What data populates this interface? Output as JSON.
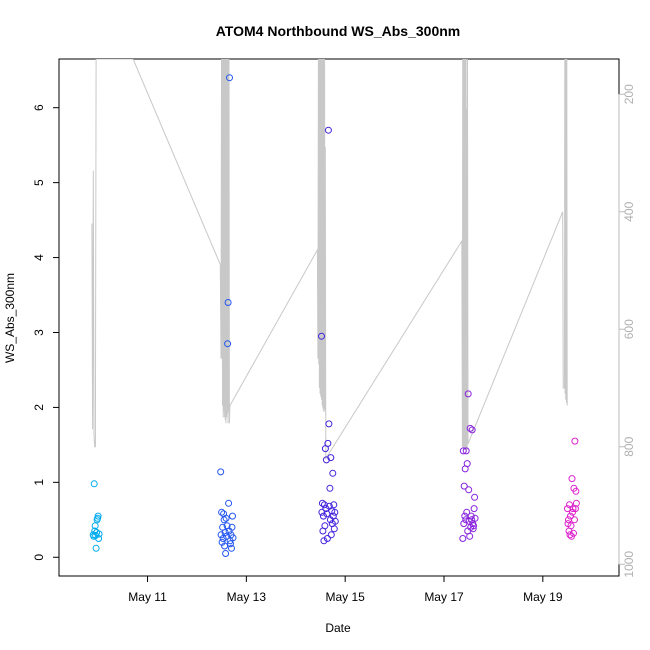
{
  "chart_data": {
    "type": "scatter",
    "title": "ATOM4 Northbound WS_Abs_300nm",
    "xlabel": "Date",
    "ylabel": "WS_Abs_300nm",
    "xlim": [
      "2016-05-09 05:00",
      "2016-05-20 13:00"
    ],
    "ylim": [
      -0.25,
      6.65
    ],
    "x_ticks": [
      "2016-05-11",
      "2016-05-13",
      "2016-05-15",
      "2016-05-17",
      "2016-05-19"
    ],
    "x_tick_labels": [
      "May 11",
      "May 13",
      "May 15",
      "May 17",
      "May 19"
    ],
    "y_ticks": [
      0,
      1,
      2,
      3,
      4,
      5,
      6
    ],
    "y2_inverted": true,
    "y2lim": [
      1020,
      140
    ],
    "y2_ticks": [
      200,
      400,
      600,
      800,
      1000
    ],
    "y2_color": "#bbbbbb",
    "grid": false,
    "legend": "none",
    "series": [
      {
        "type": "scatter",
        "color": "#00AAEE",
        "points": [
          [
            "2016-05-09 21:36",
            0.3
          ],
          [
            "2016-05-09 21:50",
            0.28
          ],
          [
            "2016-05-09 22:05",
            0.98
          ],
          [
            "2016-05-09 22:19",
            0.35
          ],
          [
            "2016-05-09 22:34",
            0.42
          ],
          [
            "2016-05-09 22:48",
            0.29
          ],
          [
            "2016-05-09 23:02",
            0.12
          ],
          [
            "2016-05-09 23:17",
            0.33
          ],
          [
            "2016-05-09 23:31",
            0.5
          ],
          [
            "2016-05-09 23:46",
            0.52
          ],
          [
            "2016-05-10 00:00",
            0.55
          ],
          [
            "2016-05-10 00:14",
            0.25
          ],
          [
            "2016-05-10 00:29",
            0.31
          ]
        ]
      },
      {
        "type": "scatter",
        "color": "#2255EE",
        "points": [
          [
            "2016-05-12 11:31",
            1.14
          ],
          [
            "2016-05-12 11:45",
            0.3
          ],
          [
            "2016-05-12 12:00",
            0.6
          ],
          [
            "2016-05-12 12:14",
            0.2
          ],
          [
            "2016-05-12 12:29",
            0.4
          ],
          [
            "2016-05-12 12:43",
            0.25
          ],
          [
            "2016-05-12 12:57",
            0.58
          ],
          [
            "2016-05-12 13:12",
            0.5
          ],
          [
            "2016-05-12 13:26",
            0.15
          ],
          [
            "2016-05-12 13:41",
            0.33
          ],
          [
            "2016-05-12 13:55",
            0.05
          ],
          [
            "2016-05-12 14:10",
            0.52
          ],
          [
            "2016-05-12 14:24",
            0.28
          ],
          [
            "2016-05-12 14:38",
            0.42
          ],
          [
            "2016-05-12 14:53",
            2.85
          ],
          [
            "2016-05-12 15:07",
            3.4
          ],
          [
            "2016-05-12 15:22",
            0.72
          ],
          [
            "2016-05-12 15:36",
            0.35
          ],
          [
            "2016-05-12 15:50",
            6.4
          ],
          [
            "2016-05-12 16:05",
            0.22
          ],
          [
            "2016-05-12 16:19",
            0.18
          ],
          [
            "2016-05-12 16:34",
            0.3
          ],
          [
            "2016-05-12 16:48",
            0.12
          ],
          [
            "2016-05-12 17:02",
            0.4
          ],
          [
            "2016-05-12 17:17",
            0.55
          ],
          [
            "2016-05-12 17:31",
            0.26
          ]
        ]
      },
      {
        "type": "scatter",
        "color": "#4422DD",
        "points": [
          [
            "2016-05-14 12:29",
            2.95
          ],
          [
            "2016-05-14 12:43",
            0.6
          ],
          [
            "2016-05-14 12:57",
            0.72
          ],
          [
            "2016-05-14 13:12",
            0.35
          ],
          [
            "2016-05-14 13:26",
            0.55
          ],
          [
            "2016-05-14 13:41",
            0.22
          ],
          [
            "2016-05-14 13:55",
            0.7
          ],
          [
            "2016-05-14 14:10",
            0.42
          ],
          [
            "2016-05-14 14:24",
            1.45
          ],
          [
            "2016-05-14 14:38",
            0.65
          ],
          [
            "2016-05-14 14:53",
            1.3
          ],
          [
            "2016-05-14 15:07",
            0.58
          ],
          [
            "2016-05-14 15:22",
            0.25
          ],
          [
            "2016-05-14 15:36",
            1.52
          ],
          [
            "2016-05-14 15:50",
            5.7
          ],
          [
            "2016-05-14 16:05",
            1.78
          ],
          [
            "2016-05-14 16:19",
            0.68
          ],
          [
            "2016-05-14 16:34",
            0.92
          ],
          [
            "2016-05-14 16:48",
            0.5
          ],
          [
            "2016-05-14 17:02",
            1.33
          ],
          [
            "2016-05-14 17:17",
            0.3
          ],
          [
            "2016-05-14 17:31",
            0.62
          ],
          [
            "2016-05-14 17:46",
            0.45
          ],
          [
            "2016-05-14 18:00",
            1.12
          ],
          [
            "2016-05-14 18:14",
            0.55
          ],
          [
            "2016-05-14 18:29",
            0.7
          ],
          [
            "2016-05-14 18:43",
            0.38
          ],
          [
            "2016-05-14 18:58",
            0.6
          ],
          [
            "2016-05-14 19:12",
            0.48
          ]
        ]
      },
      {
        "type": "scatter",
        "color": "#8822DD",
        "points": [
          [
            "2016-05-17 09:07",
            0.25
          ],
          [
            "2016-05-17 09:22",
            1.42
          ],
          [
            "2016-05-17 09:36",
            0.45
          ],
          [
            "2016-05-17 09:50",
            0.95
          ],
          [
            "2016-05-17 10:05",
            0.55
          ],
          [
            "2016-05-17 10:19",
            1.18
          ],
          [
            "2016-05-17 10:34",
            0.5
          ],
          [
            "2016-05-17 10:48",
            1.42
          ],
          [
            "2016-05-17 11:02",
            0.6
          ],
          [
            "2016-05-17 11:17",
            1.25
          ],
          [
            "2016-05-17 11:31",
            0.35
          ],
          [
            "2016-05-17 11:46",
            2.18
          ],
          [
            "2016-05-17 12:00",
            0.9
          ],
          [
            "2016-05-17 12:14",
            0.48
          ],
          [
            "2016-05-17 12:29",
            0.28
          ],
          [
            "2016-05-17 12:43",
            1.72
          ],
          [
            "2016-05-17 12:58",
            0.4
          ],
          [
            "2016-05-17 13:12",
            0.55
          ],
          [
            "2016-05-17 13:26",
            0.5
          ],
          [
            "2016-05-17 13:41",
            1.7
          ],
          [
            "2016-05-17 13:55",
            0.45
          ],
          [
            "2016-05-17 14:10",
            0.38
          ],
          [
            "2016-05-17 14:24",
            0.42
          ],
          [
            "2016-05-17 14:38",
            0.65
          ],
          [
            "2016-05-17 14:53",
            0.8
          ],
          [
            "2016-05-17 15:07",
            0.52
          ]
        ]
      },
      {
        "type": "scatter",
        "color": "#DD22CC",
        "points": [
          [
            "2016-05-19 12:00",
            0.65
          ],
          [
            "2016-05-19 12:14",
            0.45
          ],
          [
            "2016-05-19 12:29",
            0.5
          ],
          [
            "2016-05-19 12:43",
            0.35
          ],
          [
            "2016-05-19 12:57",
            0.7
          ],
          [
            "2016-05-19 13:12",
            0.3
          ],
          [
            "2016-05-19 13:26",
            0.55
          ],
          [
            "2016-05-19 13:41",
            0.42
          ],
          [
            "2016-05-19 13:55",
            0.28
          ],
          [
            "2016-05-19 14:10",
            1.05
          ],
          [
            "2016-05-19 14:24",
            0.6
          ],
          [
            "2016-05-19 14:38",
            0.65
          ],
          [
            "2016-05-19 14:53",
            0.32
          ],
          [
            "2016-05-19 15:07",
            0.92
          ],
          [
            "2016-05-19 15:22",
            0.5
          ],
          [
            "2016-05-19 15:36",
            1.55
          ],
          [
            "2016-05-19 15:50",
            0.65
          ],
          [
            "2016-05-19 16:05",
            0.88
          ],
          [
            "2016-05-19 16:19",
            0.72
          ]
        ]
      },
      {
        "type": "line",
        "axis": "right",
        "color": "#c8c8c8",
        "points": [
          [
            "2016-05-09 21:00",
            420
          ],
          [
            "2016-05-09 21:20",
            770
          ],
          [
            "2016-05-09 21:40",
            330
          ],
          [
            "2016-05-09 22:00",
            780
          ],
          [
            "2016-05-09 22:20",
            800
          ],
          [
            "2016-05-09 22:40",
            800
          ],
          [
            "2016-05-09 23:00",
            140
          ],
          [
            "2016-05-09 23:20",
            140
          ],
          [
            "2016-05-10 17:00",
            140
          ],
          [
            "2016-05-12 11:20",
            490
          ],
          [
            "2016-05-12 11:40",
            650
          ],
          [
            "2016-05-12 11:55",
            140
          ],
          [
            "2016-05-12 12:05",
            650
          ],
          [
            "2016-05-12 12:15",
            140
          ],
          [
            "2016-05-12 12:25",
            730
          ],
          [
            "2016-05-12 12:35",
            140
          ],
          [
            "2016-05-12 12:45",
            750
          ],
          [
            "2016-05-12 12:55",
            140
          ],
          [
            "2016-05-12 13:05",
            740
          ],
          [
            "2016-05-12 13:15",
            140
          ],
          [
            "2016-05-12 13:25",
            750
          ],
          [
            "2016-05-12 13:35",
            140
          ],
          [
            "2016-05-12 13:45",
            755
          ],
          [
            "2016-05-12 13:55",
            140
          ],
          [
            "2016-05-12 14:05",
            760
          ],
          [
            "2016-05-12 14:15",
            140
          ],
          [
            "2016-05-12 14:25",
            750
          ],
          [
            "2016-05-12 14:35",
            140
          ],
          [
            "2016-05-12 14:45",
            745
          ],
          [
            "2016-05-12 14:55",
            140
          ],
          [
            "2016-05-12 15:05",
            760
          ],
          [
            "2016-05-12 15:15",
            140
          ],
          [
            "2016-05-12 15:25",
            740
          ],
          [
            "2016-05-12 15:35",
            140
          ],
          [
            "2016-05-12 15:45",
            760
          ],
          [
            "2016-05-12 16:00",
            730
          ],
          [
            "2016-05-14 10:30",
            465
          ],
          [
            "2016-05-14 10:45",
            650
          ],
          [
            "2016-05-14 11:00",
            140
          ],
          [
            "2016-05-14 11:10",
            660
          ],
          [
            "2016-05-14 11:20",
            140
          ],
          [
            "2016-05-14 11:30",
            700
          ],
          [
            "2016-05-14 11:40",
            140
          ],
          [
            "2016-05-14 11:50",
            710
          ],
          [
            "2016-05-14 12:00",
            140
          ],
          [
            "2016-05-14 12:10",
            715
          ],
          [
            "2016-05-14 12:20",
            140
          ],
          [
            "2016-05-14 12:30",
            720
          ],
          [
            "2016-05-14 12:40",
            140
          ],
          [
            "2016-05-14 12:50",
            730
          ],
          [
            "2016-05-14 13:00",
            140
          ],
          [
            "2016-05-14 13:10",
            735
          ],
          [
            "2016-05-14 13:20",
            140
          ],
          [
            "2016-05-14 13:30",
            740
          ],
          [
            "2016-05-14 13:40",
            140
          ],
          [
            "2016-05-14 13:50",
            735
          ],
          [
            "2016-05-14 14:00",
            140
          ],
          [
            "2016-05-14 14:10",
            740
          ],
          [
            "2016-05-14 14:20",
            290
          ],
          [
            "2016-05-14 14:35",
            820
          ],
          [
            "2016-05-17 08:40",
            450
          ],
          [
            "2016-05-17 08:55",
            800
          ],
          [
            "2016-05-17 09:05",
            140
          ],
          [
            "2016-05-17 09:15",
            800
          ],
          [
            "2016-05-17 09:25",
            140
          ],
          [
            "2016-05-17 09:35",
            805
          ],
          [
            "2016-05-17 09:45",
            140
          ],
          [
            "2016-05-17 09:55",
            805
          ],
          [
            "2016-05-17 10:05",
            140
          ],
          [
            "2016-05-17 10:15",
            805
          ],
          [
            "2016-05-17 10:25",
            140
          ],
          [
            "2016-05-17 10:35",
            805
          ],
          [
            "2016-05-17 10:45",
            140
          ],
          [
            "2016-05-17 10:55",
            805
          ],
          [
            "2016-05-17 11:05",
            225
          ],
          [
            "2016-05-17 11:15",
            805
          ],
          [
            "2016-05-17 11:25",
            140
          ],
          [
            "2016-05-17 11:40",
            795
          ],
          [
            "2016-05-19 09:40",
            400
          ],
          [
            "2016-05-19 09:55",
            700
          ],
          [
            "2016-05-19 10:30",
            700
          ],
          [
            "2016-05-19 10:40",
            140
          ],
          [
            "2016-05-19 10:50",
            710
          ],
          [
            "2016-05-19 11:00",
            140
          ],
          [
            "2016-05-19 11:10",
            720
          ],
          [
            "2016-05-19 11:20",
            140
          ],
          [
            "2016-05-19 11:30",
            725
          ],
          [
            "2016-05-19 11:40",
            140
          ],
          [
            "2016-05-19 11:50",
            730
          ]
        ]
      }
    ]
  }
}
